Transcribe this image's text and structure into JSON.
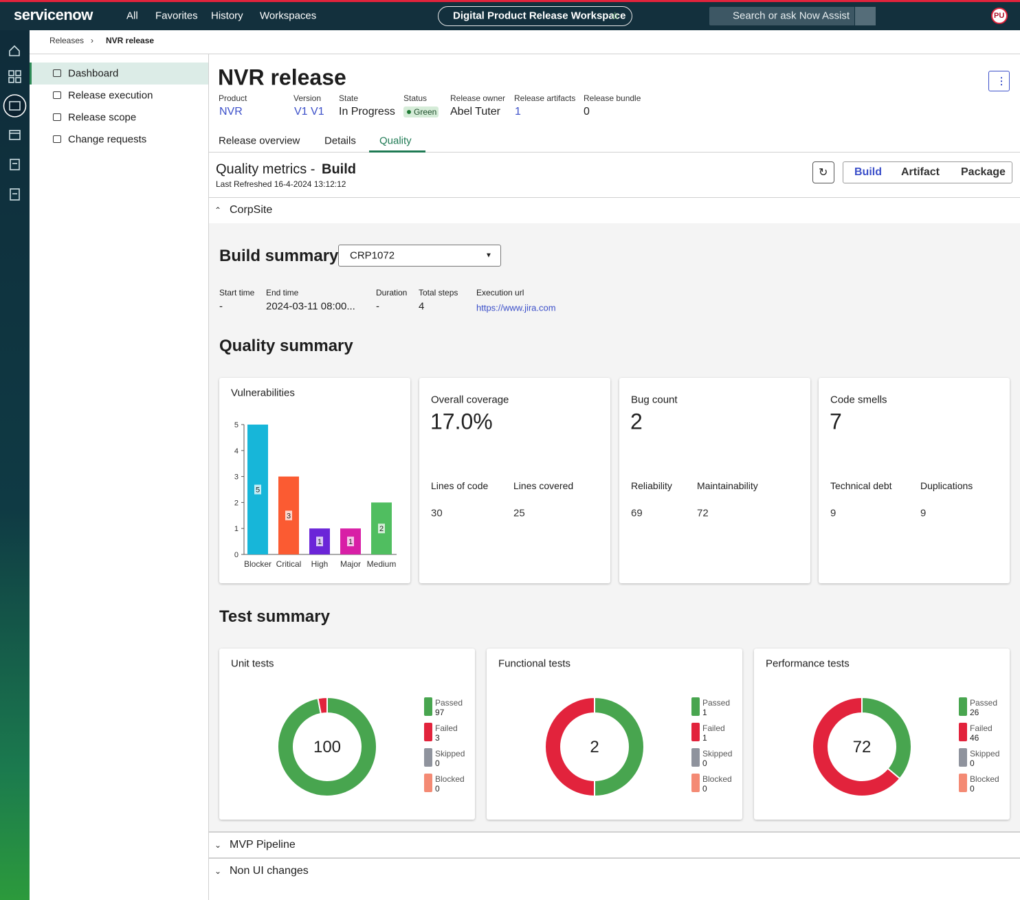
{
  "topnav": {
    "brand": "servicenow",
    "menu": [
      "All",
      "Favorites",
      "History",
      "Workspaces"
    ],
    "workspace": "Digital Product Release Workspace",
    "search": "Search or ask Now Assist",
    "avatar": "PU"
  },
  "breadcrumb": [
    "Releases",
    "NVR release"
  ],
  "sidebar": [
    "Dashboard",
    "Release execution",
    "Release scope",
    "Change requests"
  ],
  "record": {
    "title": "NVR release",
    "fields": [
      {
        "label": "Product",
        "value": "NVR"
      },
      {
        "label": "Version",
        "value": "V1 V1"
      },
      {
        "label": "State",
        "value": "In Progress"
      },
      {
        "label": "Status",
        "value": "Green"
      },
      {
        "label": "Release owner",
        "value": "Abel Tuter"
      },
      {
        "label": "Release artifacts",
        "value": "1"
      },
      {
        "label": "Release bundle",
        "value": "0"
      }
    ]
  },
  "tabs": [
    "Release overview",
    "Details",
    "Quality"
  ],
  "quality": {
    "title": "Quality metrics -",
    "type": "Build",
    "last_refreshed": "Last Refreshed 16-4-2024 13:12:12",
    "toggle": [
      "Build",
      "Artifact",
      "Package"
    ]
  },
  "sections": [
    "CorpSite",
    "MVP Pipeline",
    "Non UI changes"
  ],
  "build_summary": {
    "title": "Build summary",
    "select": "CRP1072",
    "fields": [
      {
        "label": "Start time",
        "value": "-"
      },
      {
        "label": "End time",
        "value": "2024-03-11 08:00..."
      },
      {
        "label": "Duration",
        "value": "-"
      },
      {
        "label": "Total steps",
        "value": "4"
      },
      {
        "label": "Execution url",
        "value": "https://www.jira.com"
      }
    ]
  },
  "quality_summary": {
    "title": "Quality summary",
    "vulnerabilities": {
      "type": "bar",
      "title": "Vulnerabilities",
      "categories": [
        "Blocker",
        "Critical",
        "High",
        "Major",
        "Medium"
      ],
      "values": [
        5,
        3,
        1,
        1,
        2
      ],
      "colors": [
        "#17b6d9",
        "#fb5b32",
        "#6b25d8",
        "#d81fa6",
        "#50be60"
      ],
      "ylim": [
        0,
        5
      ],
      "yticks": [
        0,
        1,
        2,
        3,
        4,
        5
      ]
    },
    "cards": [
      {
        "title": "Overall coverage",
        "value": "17.0%",
        "metrics": [
          {
            "label": "Lines of code",
            "value": "30"
          },
          {
            "label": "Lines covered",
            "value": "25"
          }
        ]
      },
      {
        "title": "Bug count",
        "value": "2",
        "metrics": [
          {
            "label": "Reliability",
            "value": "69"
          },
          {
            "label": "Maintainability",
            "value": "72"
          }
        ]
      },
      {
        "title": "Code smells",
        "value": "7",
        "metrics": [
          {
            "label": "Technical debt",
            "value": "9"
          },
          {
            "label": "Duplications",
            "value": "9"
          }
        ]
      }
    ]
  },
  "test_summary": {
    "title": "Test summary",
    "charts": [
      {
        "type": "donut",
        "title": "Unit tests",
        "total": 100,
        "series": [
          {
            "name": "Passed",
            "color": "#48a54f",
            "value": 97
          },
          {
            "name": "Failed",
            "color": "#e2233c",
            "value": 3
          },
          {
            "name": "Skipped",
            "color": "#8f939d",
            "value": 0
          },
          {
            "name": "Blocked",
            "color": "#f48a74",
            "value": 0
          }
        ]
      },
      {
        "type": "donut",
        "title": "Functional tests",
        "total": 2,
        "series": [
          {
            "name": "Passed",
            "color": "#48a54f",
            "value": 1
          },
          {
            "name": "Failed",
            "color": "#e2233c",
            "value": 1
          },
          {
            "name": "Skipped",
            "color": "#8f939d",
            "value": 0
          },
          {
            "name": "Blocked",
            "color": "#f48a74",
            "value": 0
          }
        ]
      },
      {
        "type": "donut",
        "title": "Performance tests",
        "total": 72,
        "series": [
          {
            "name": "Passed",
            "color": "#48a54f",
            "value": 26
          },
          {
            "name": "Failed",
            "color": "#e2233c",
            "value": 46
          },
          {
            "name": "Skipped",
            "color": "#8f939d",
            "value": 0
          },
          {
            "name": "Blocked",
            "color": "#f48a74",
            "value": 0
          }
        ]
      }
    ]
  }
}
